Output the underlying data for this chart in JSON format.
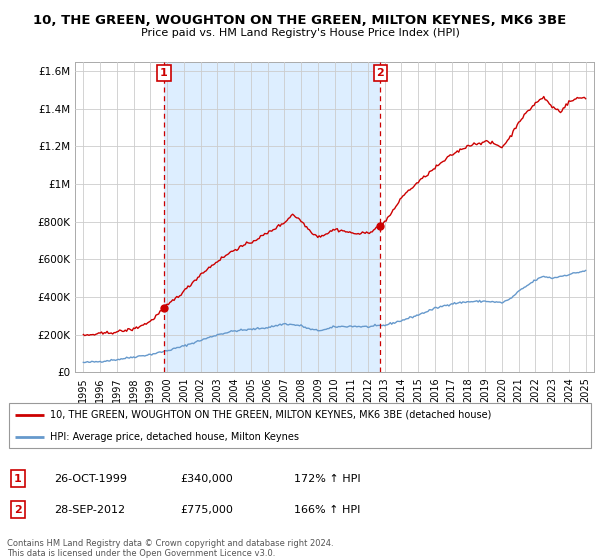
{
  "title": "10, THE GREEN, WOUGHTON ON THE GREEN, MILTON KEYNES, MK6 3BE",
  "subtitle": "Price paid vs. HM Land Registry's House Price Index (HPI)",
  "legend_line1": "10, THE GREEN, WOUGHTON ON THE GREEN, MILTON KEYNES, MK6 3BE (detached house)",
  "legend_line2": "HPI: Average price, detached house, Milton Keynes",
  "marker1_date": "26-OCT-1999",
  "marker1_price": 340000,
  "marker1_hpi": "172% ↑ HPI",
  "marker2_date": "28-SEP-2012",
  "marker2_price": 775000,
  "marker2_hpi": "166% ↑ HPI",
  "footnote": "Contains HM Land Registry data © Crown copyright and database right 2024.\nThis data is licensed under the Open Government Licence v3.0.",
  "red_color": "#cc0000",
  "blue_color": "#6699cc",
  "shade_color": "#ddeeff",
  "background_color": "#ffffff",
  "grid_color": "#cccccc",
  "ylim": [
    0,
    1650000
  ],
  "yticks": [
    0,
    200000,
    400000,
    600000,
    800000,
    1000000,
    1200000,
    1400000,
    1600000
  ],
  "xlim_start": 1994.5,
  "xlim_end": 2025.5,
  "sale1_x": 1999.81,
  "sale1_y": 340000,
  "sale2_x": 2012.73,
  "sale2_y": 775000
}
